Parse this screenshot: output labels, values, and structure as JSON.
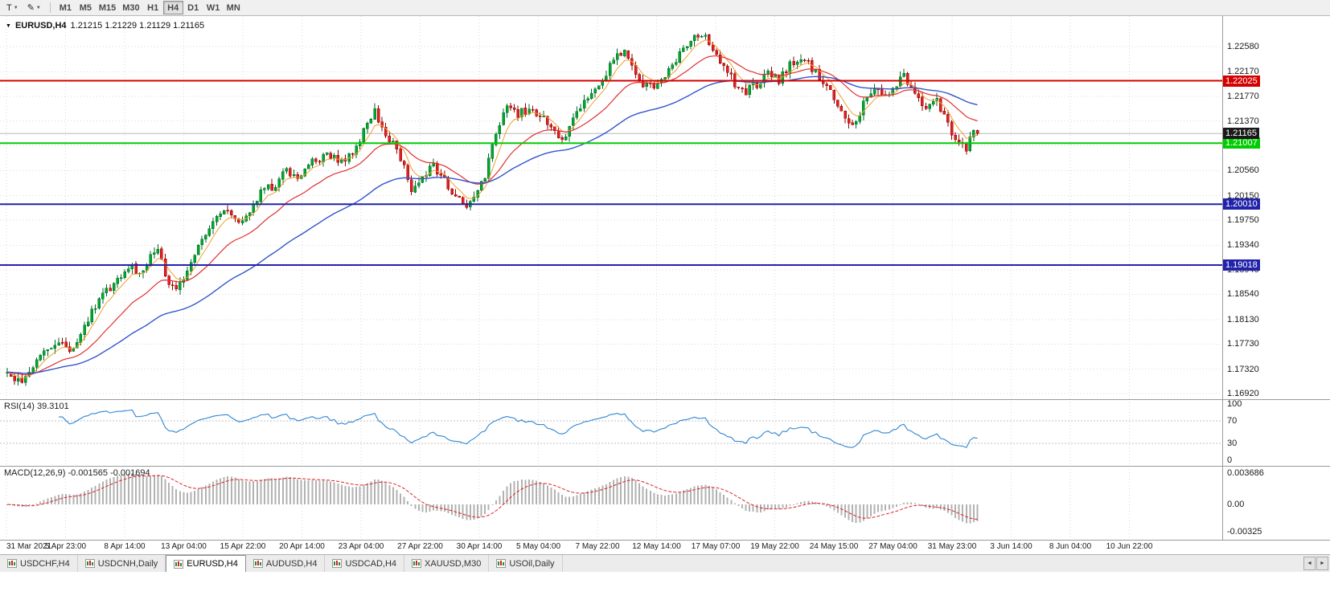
{
  "colors": {
    "up_fill": "#00a82a",
    "up_border": "#00672a",
    "down_fill": "#e32020",
    "down_border": "#8f0000",
    "grid": "#dadada",
    "current_price_line": "#b8b8b8",
    "current_badge_bg": "#1a1a1a",
    "rsi_line": "#2e86d2",
    "rsi_level_dash": "#bfbfbf",
    "macd_hist": "#b2b2b2",
    "macd_signal": "#dd2222"
  },
  "toolbar": {
    "t_label": "T",
    "pen_icon": "✎",
    "timeframes": [
      {
        "label": "M1",
        "active": false
      },
      {
        "label": "M5",
        "active": false
      },
      {
        "label": "M15",
        "active": false
      },
      {
        "label": "M30",
        "active": false
      },
      {
        "label": "H1",
        "active": false
      },
      {
        "label": "H4",
        "active": true
      },
      {
        "label": "D1",
        "active": false
      },
      {
        "label": "W1",
        "active": false
      },
      {
        "label": "MN",
        "active": false
      }
    ]
  },
  "chart": {
    "collapse_arrow": "▼",
    "symbol_title": "EURUSD,H4",
    "ohlc_text": "1.21215 1.21229 1.21129 1.21165",
    "price_axis_labels": [
      "1.22580",
      "1.22170",
      "1.21770",
      "1.21370",
      "1.20560",
      "1.20150",
      "1.19750",
      "1.19340",
      "1.18940",
      "1.18540",
      "1.18130",
      "1.17730",
      "1.17320",
      "1.16920"
    ],
    "grid_extra_levels": [
      "1.20970"
    ],
    "hlines": [
      {
        "label": "1.22025",
        "value": 1.22025,
        "color": "#d40000"
      },
      {
        "label": "1.21007",
        "value": 1.21007,
        "color": "#00cc00"
      },
      {
        "label": "1.20010",
        "value": 1.2001,
        "color": "#2222aa"
      },
      {
        "label": "1.19018",
        "value": 1.19018,
        "color": "#2222aa"
      }
    ],
    "current_price": {
      "label": "1.21165",
      "value": 1.21165
    },
    "time_axis_labels": [
      "31 Mar 2021",
      "5 Apr 23:00",
      "8 Apr 14:00",
      "13 Apr 04:00",
      "15 Apr 22:00",
      "20 Apr 14:00",
      "23 Apr 04:00",
      "27 Apr 22:00",
      "30 Apr 14:00",
      "5 May 04:00",
      "7 May 22:00",
      "12 May 14:00",
      "17 May 07:00",
      "19 May 22:00",
      "24 May 15:00",
      "27 May 04:00",
      "31 May 23:00",
      "3 Jun 14:00",
      "8 Jun 04:00",
      "10 Jun 22:00"
    ]
  },
  "rsi": {
    "label": "RSI(14) 39.3101",
    "scale": [
      {
        "label": "100",
        "value": 100
      },
      {
        "label": "70",
        "value": 70
      },
      {
        "label": "30",
        "value": 30
      },
      {
        "label": "0",
        "value": 0
      }
    ],
    "dashed_levels": [
      70,
      30
    ]
  },
  "macd": {
    "label": "MACD(12,26,9) -0.001565 -0.001694",
    "scale": [
      {
        "label": "0.003686",
        "value": 0.003686
      },
      {
        "label": "0.00",
        "value": 0
      },
      {
        "label": "-0.00325",
        "value": -0.00325
      }
    ]
  },
  "tabs": [
    {
      "label": "USDCHF,H4",
      "active": false
    },
    {
      "label": "USDCNH,Daily",
      "active": false
    },
    {
      "label": "EURUSD,H4",
      "active": true
    },
    {
      "label": "AUDUSD,H4",
      "active": false
    },
    {
      "label": "USDCAD,H4",
      "active": false
    },
    {
      "label": "XAUUSD,M30",
      "active": false
    },
    {
      "label": "USOil,Daily",
      "active": false
    }
  ],
  "tab_scroll": {
    "left": "◄",
    "right": "►"
  },
  "chart_data": {
    "type": "candlestick",
    "symbol": "EURUSD",
    "timeframe": "H4",
    "title": "EURUSD,H4 1.21215 1.21229 1.21129 1.21165",
    "last_ohlc": {
      "open": 1.21215,
      "high": 1.21229,
      "low": 1.21129,
      "close": 1.21165
    },
    "candle_count": 265,
    "y_range": [
      1.1683,
      1.2308
    ],
    "price_anchors": [
      [
        0,
        1.1725
      ],
      [
        2,
        1.1707
      ],
      [
        5,
        1.1722
      ],
      [
        8,
        1.1744
      ],
      [
        12,
        1.1768
      ],
      [
        15,
        1.1782
      ],
      [
        17,
        1.1766
      ],
      [
        20,
        1.1786
      ],
      [
        24,
        1.1836
      ],
      [
        28,
        1.1866
      ],
      [
        31,
        1.1888
      ],
      [
        33,
        1.1902
      ],
      [
        36,
        1.1886
      ],
      [
        39,
        1.1916
      ],
      [
        41,
        1.1926
      ],
      [
        44,
        1.1872
      ],
      [
        46,
        1.1856
      ],
      [
        50,
        1.1912
      ],
      [
        54,
        1.1952
      ],
      [
        58,
        1.1982
      ],
      [
        61,
        1.199
      ],
      [
        63,
        1.1974
      ],
      [
        66,
        1.1992
      ],
      [
        70,
        1.203
      ],
      [
        73,
        1.2026
      ],
      [
        76,
        1.2058
      ],
      [
        79,
        1.2044
      ],
      [
        83,
        1.2068
      ],
      [
        87,
        1.208
      ],
      [
        91,
        1.207
      ],
      [
        95,
        1.2092
      ],
      [
        98,
        1.2136
      ],
      [
        100,
        1.2152
      ],
      [
        102,
        1.2128
      ],
      [
        105,
        1.2098
      ],
      [
        108,
        1.2062
      ],
      [
        110,
        1.2028
      ],
      [
        113,
        1.2046
      ],
      [
        116,
        1.2064
      ],
      [
        119,
        1.2038
      ],
      [
        122,
        1.2016
      ],
      [
        124,
        1.1996
      ],
      [
        127,
        1.2014
      ],
      [
        130,
        1.2048
      ],
      [
        133,
        1.2116
      ],
      [
        136,
        1.2164
      ],
      [
        139,
        1.2148
      ],
      [
        142,
        1.2158
      ],
      [
        145,
        1.2143
      ],
      [
        148,
        1.2128
      ],
      [
        151,
        1.2104
      ],
      [
        153,
        1.2124
      ],
      [
        156,
        1.2158
      ],
      [
        159,
        1.2178
      ],
      [
        162,
        1.2198
      ],
      [
        165,
        1.2238
      ],
      [
        168,
        1.225
      ],
      [
        170,
        1.2228
      ],
      [
        173,
        1.2198
      ],
      [
        176,
        1.2192
      ],
      [
        179,
        1.221
      ],
      [
        183,
        1.2248
      ],
      [
        186,
        1.2268
      ],
      [
        189,
        1.2278
      ],
      [
        192,
        1.2258
      ],
      [
        195,
        1.2228
      ],
      [
        198,
        1.2198
      ],
      [
        201,
        1.2184
      ],
      [
        204,
        1.2198
      ],
      [
        207,
        1.2214
      ],
      [
        210,
        1.2204
      ],
      [
        213,
        1.2228
      ],
      [
        216,
        1.224
      ],
      [
        219,
        1.2224
      ],
      [
        222,
        1.2198
      ],
      [
        225,
        1.2178
      ],
      [
        228,
        1.214
      ],
      [
        230,
        1.2124
      ],
      [
        233,
        1.2164
      ],
      [
        236,
        1.2184
      ],
      [
        239,
        1.2174
      ],
      [
        242,
        1.219
      ],
      [
        244,
        1.2214
      ],
      [
        247,
        1.218
      ],
      [
        250,
        1.2154
      ],
      [
        253,
        1.2168
      ],
      [
        256,
        1.2128
      ],
      [
        259,
        1.21
      ],
      [
        261,
        1.2094
      ],
      [
        263,
        1.2118
      ],
      [
        264,
        1.21165
      ]
    ],
    "moving_averages": [
      {
        "period": 6,
        "color": "#f0a030",
        "width": 1
      },
      {
        "period": 21,
        "color": "#e03030",
        "width": 1.2
      },
      {
        "period": 55,
        "color": "#3355cc",
        "width": 1.4
      }
    ],
    "horizontal_levels": [
      1.22025,
      1.21007,
      1.2001,
      1.19018
    ],
    "indicators": {
      "rsi_period": 14,
      "rsi_value": 39.3101,
      "macd_fast": 12,
      "macd_slow": 26,
      "macd_signal_period": 9,
      "macd_main": -0.001565,
      "macd_signal": -0.001694
    }
  }
}
